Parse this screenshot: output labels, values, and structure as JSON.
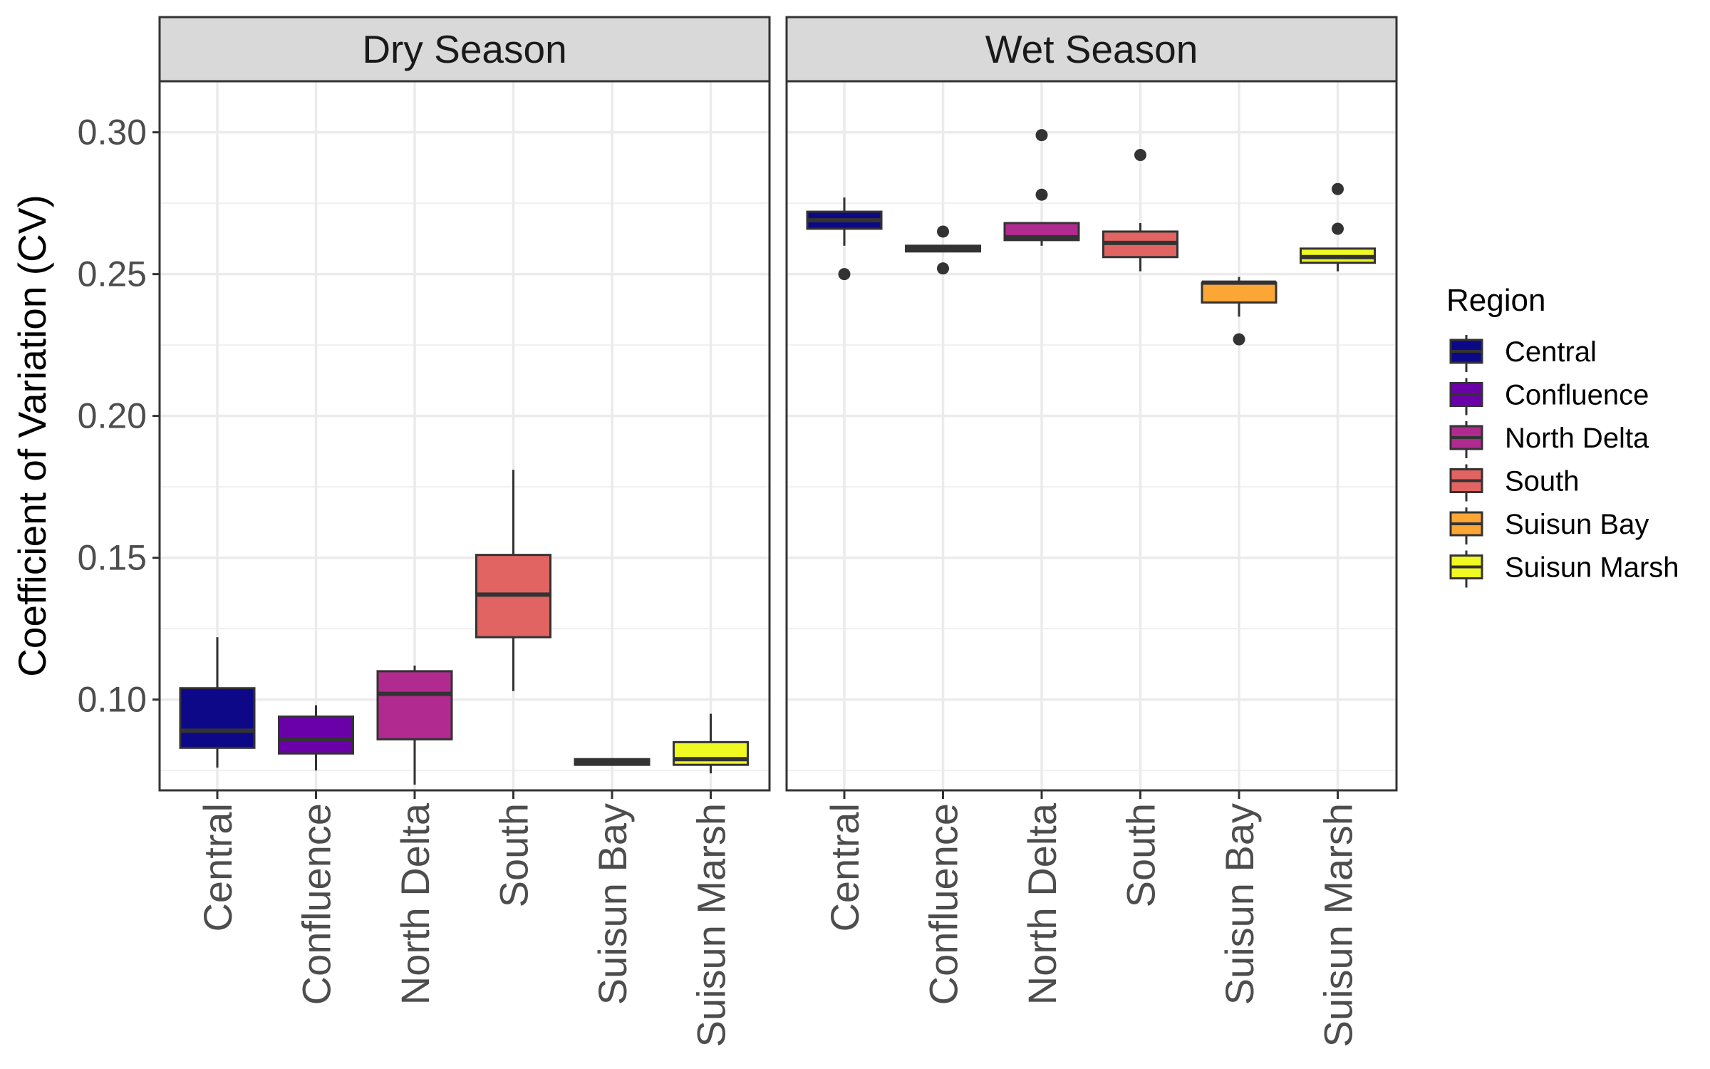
{
  "chart_data": {
    "type": "box",
    "ylabel": "Coefficient of Variation (CV)",
    "xlabel": "",
    "ylim": [
      0.068,
      0.318
    ],
    "yticks": [
      0.1,
      0.15,
      0.2,
      0.25,
      0.3
    ],
    "ytick_labels": [
      "0.10",
      "0.15",
      "0.20",
      "0.25",
      "0.30"
    ],
    "categories": [
      "Central",
      "Confluence",
      "North Delta",
      "South",
      "Suisun Bay",
      "Suisun Marsh"
    ],
    "grid": true,
    "legend": {
      "title": "Region",
      "position": "right",
      "entries": [
        {
          "name": "Central",
          "color": "#0d0887"
        },
        {
          "name": "Confluence",
          "color": "#6a00a8"
        },
        {
          "name": "North Delta",
          "color": "#b12a90"
        },
        {
          "name": "South",
          "color": "#e16462"
        },
        {
          "name": "Suisun Bay",
          "color": "#fca636"
        },
        {
          "name": "Suisun Marsh",
          "color": "#f0f921"
        }
      ]
    },
    "panels": [
      {
        "title": "Dry Season",
        "boxes": [
          {
            "category": "Central",
            "lower_whisker": 0.076,
            "q1": 0.083,
            "median": 0.089,
            "q3": 0.104,
            "upper_whisker": 0.122,
            "outliers": []
          },
          {
            "category": "Confluence",
            "lower_whisker": 0.075,
            "q1": 0.081,
            "median": 0.086,
            "q3": 0.094,
            "upper_whisker": 0.098,
            "outliers": []
          },
          {
            "category": "North Delta",
            "lower_whisker": 0.07,
            "q1": 0.086,
            "median": 0.102,
            "q3": 0.11,
            "upper_whisker": 0.112,
            "outliers": []
          },
          {
            "category": "South",
            "lower_whisker": 0.103,
            "q1": 0.122,
            "median": 0.137,
            "q3": 0.151,
            "upper_whisker": 0.181,
            "outliers": []
          },
          {
            "category": "Suisun Bay",
            "lower_whisker": 0.077,
            "q1": 0.077,
            "median": 0.078,
            "q3": 0.079,
            "upper_whisker": 0.079,
            "outliers": []
          },
          {
            "category": "Suisun Marsh",
            "lower_whisker": 0.074,
            "q1": 0.077,
            "median": 0.079,
            "q3": 0.085,
            "upper_whisker": 0.095,
            "outliers": []
          }
        ]
      },
      {
        "title": "Wet Season",
        "boxes": [
          {
            "category": "Central",
            "lower_whisker": 0.26,
            "q1": 0.266,
            "median": 0.269,
            "q3": 0.272,
            "upper_whisker": 0.277,
            "outliers": [
              0.25
            ]
          },
          {
            "category": "Confluence",
            "lower_whisker": 0.258,
            "q1": 0.258,
            "median": 0.259,
            "q3": 0.26,
            "upper_whisker": 0.26,
            "outliers": [
              0.265,
              0.252
            ]
          },
          {
            "category": "North Delta",
            "lower_whisker": 0.26,
            "q1": 0.262,
            "median": 0.263,
            "q3": 0.268,
            "upper_whisker": 0.268,
            "outliers": [
              0.299,
              0.278
            ]
          },
          {
            "category": "South",
            "lower_whisker": 0.251,
            "q1": 0.256,
            "median": 0.261,
            "q3": 0.265,
            "upper_whisker": 0.268,
            "outliers": [
              0.292
            ]
          },
          {
            "category": "Suisun Bay",
            "lower_whisker": 0.235,
            "q1": 0.24,
            "median": 0.247,
            "q3": 0.247,
            "upper_whisker": 0.249,
            "outliers": [
              0.227
            ]
          },
          {
            "category": "Suisun Marsh",
            "lower_whisker": 0.251,
            "q1": 0.254,
            "median": 0.256,
            "q3": 0.259,
            "upper_whisker": 0.259,
            "outliers": [
              0.28,
              0.266
            ]
          }
        ]
      }
    ]
  }
}
